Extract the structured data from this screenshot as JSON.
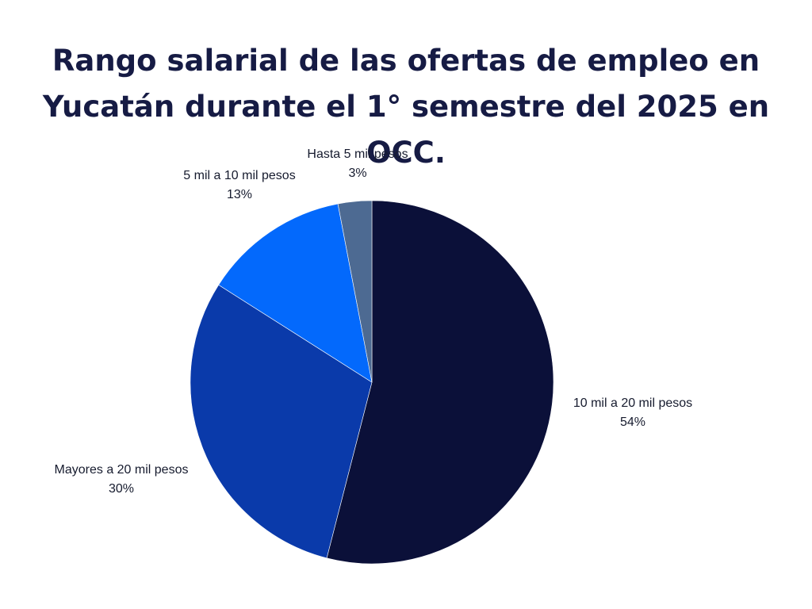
{
  "title_line1": "Rango salarial de las ofertas de empleo en",
  "title_line2": "Yucatán durante el 1° semestre del 2025 en OCC.",
  "chart_data": {
    "type": "pie",
    "title": "Rango salarial de las ofertas de empleo en Yucatán durante el 1° semestre del 2025 en OCC.",
    "start": "12 o'clock",
    "direction": "clockwise",
    "slices": [
      {
        "label": "10 mil a 20 mil pesos",
        "value": 54,
        "value_label": "54%",
        "color": "#0b1039"
      },
      {
        "label": "Mayores a 20 mil pesos",
        "value": 30,
        "value_label": "30%",
        "color": "#0a3aaa"
      },
      {
        "label": "5 mil a 10 mil pesos",
        "value": 13,
        "value_label": "13%",
        "color": "#0369fc"
      },
      {
        "label": "Hasta 5 mil pesos",
        "value": 3,
        "value_label": "3%",
        "color": "#4d6a92"
      }
    ]
  }
}
